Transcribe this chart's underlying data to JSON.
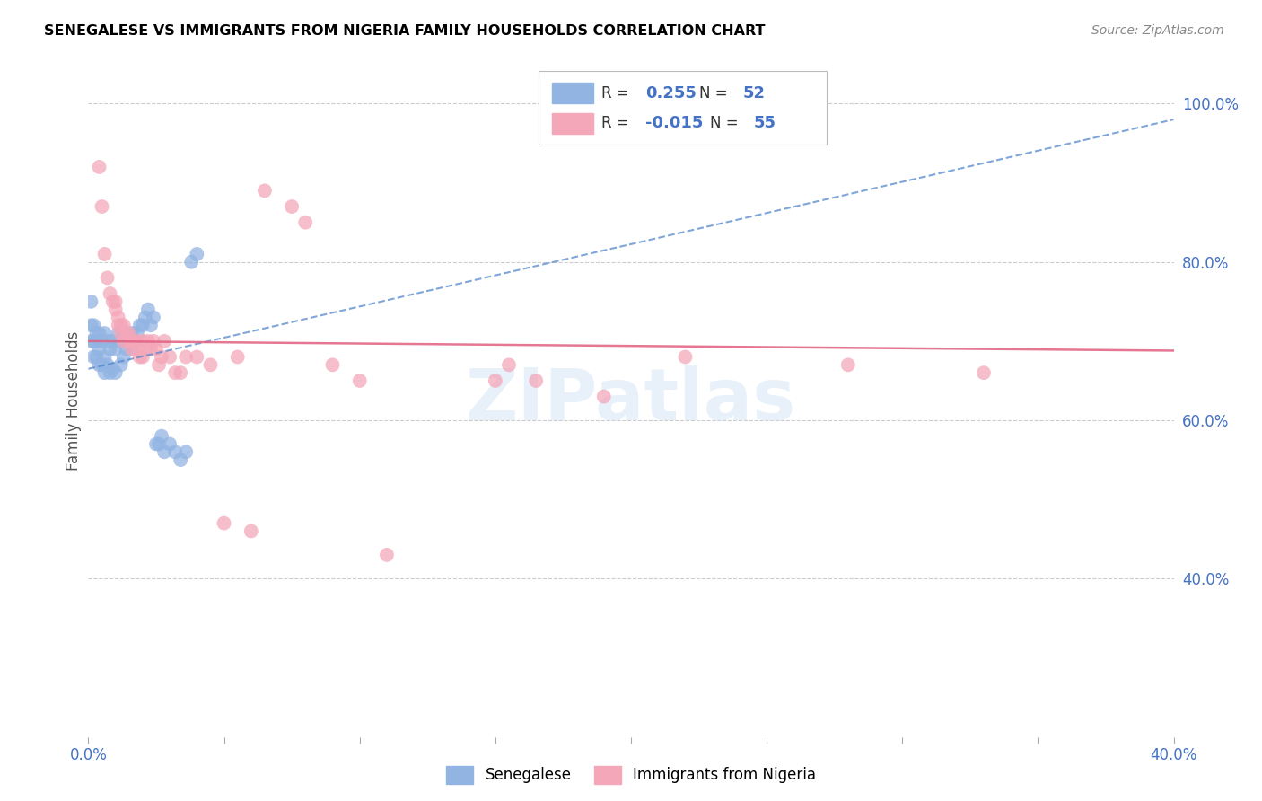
{
  "title": "SENEGALESE VS IMMIGRANTS FROM NIGERIA FAMILY HOUSEHOLDS CORRELATION CHART",
  "source": "Source: ZipAtlas.com",
  "ylabel": "Family Households",
  "xlim": [
    0.0,
    0.4
  ],
  "ylim": [
    0.2,
    1.05
  ],
  "x_ticks": [
    0.0,
    0.05,
    0.1,
    0.15,
    0.2,
    0.25,
    0.3,
    0.35,
    0.4
  ],
  "x_tick_labels": [
    "0.0%",
    "",
    "",
    "",
    "",
    "",
    "",
    "",
    "40.0%"
  ],
  "y_ticks_right": [
    0.4,
    0.6,
    0.8,
    1.0
  ],
  "y_tick_labels_right": [
    "40.0%",
    "60.0%",
    "80.0%",
    "100.0%"
  ],
  "senegalese_color": "#92b4e3",
  "nigeria_color": "#f4a7b9",
  "trendline_blue_color": "#5588cc",
  "trendline_pink_color": "#e06080",
  "R_senegalese": 0.255,
  "N_senegalese": 52,
  "R_nigeria": -0.015,
  "N_nigeria": 55,
  "watermark": "ZIPatlas",
  "legend_label_senegalese": "Senegalese",
  "legend_label_nigeria": "Immigrants from Nigeria",
  "senegalese_x": [
    0.001,
    0.001,
    0.001,
    0.002,
    0.002,
    0.002,
    0.003,
    0.003,
    0.003,
    0.004,
    0.004,
    0.004,
    0.005,
    0.005,
    0.006,
    0.006,
    0.006,
    0.007,
    0.007,
    0.008,
    0.008,
    0.009,
    0.009,
    0.01,
    0.01,
    0.011,
    0.012,
    0.012,
    0.013,
    0.013,
    0.014,
    0.015,
    0.016,
    0.016,
    0.017,
    0.018,
    0.019,
    0.02,
    0.021,
    0.022,
    0.023,
    0.024,
    0.025,
    0.026,
    0.027,
    0.028,
    0.03,
    0.032,
    0.034,
    0.036,
    0.038,
    0.04
  ],
  "senegalese_y": [
    0.7,
    0.72,
    0.75,
    0.68,
    0.7,
    0.72,
    0.68,
    0.7,
    0.71,
    0.67,
    0.69,
    0.71,
    0.67,
    0.7,
    0.66,
    0.68,
    0.71,
    0.67,
    0.7,
    0.66,
    0.69,
    0.665,
    0.7,
    0.66,
    0.69,
    0.71,
    0.67,
    0.7,
    0.68,
    0.71,
    0.69,
    0.7,
    0.69,
    0.71,
    0.7,
    0.71,
    0.72,
    0.72,
    0.73,
    0.74,
    0.72,
    0.73,
    0.57,
    0.57,
    0.58,
    0.56,
    0.57,
    0.56,
    0.55,
    0.56,
    0.8,
    0.81
  ],
  "nigeria_x": [
    0.004,
    0.005,
    0.006,
    0.007,
    0.008,
    0.009,
    0.01,
    0.01,
    0.011,
    0.011,
    0.012,
    0.012,
    0.013,
    0.013,
    0.014,
    0.015,
    0.015,
    0.016,
    0.016,
    0.017,
    0.018,
    0.018,
    0.019,
    0.02,
    0.02,
    0.021,
    0.022,
    0.023,
    0.024,
    0.025,
    0.026,
    0.027,
    0.028,
    0.03,
    0.032,
    0.034,
    0.036,
    0.04,
    0.045,
    0.05,
    0.055,
    0.06,
    0.065,
    0.075,
    0.08,
    0.09,
    0.1,
    0.11,
    0.15,
    0.155,
    0.165,
    0.19,
    0.22,
    0.28,
    0.33
  ],
  "nigeria_y": [
    0.92,
    0.87,
    0.81,
    0.78,
    0.76,
    0.75,
    0.75,
    0.74,
    0.73,
    0.72,
    0.72,
    0.71,
    0.7,
    0.72,
    0.71,
    0.7,
    0.71,
    0.69,
    0.7,
    0.7,
    0.69,
    0.7,
    0.68,
    0.68,
    0.7,
    0.69,
    0.7,
    0.69,
    0.7,
    0.69,
    0.67,
    0.68,
    0.7,
    0.68,
    0.66,
    0.66,
    0.68,
    0.68,
    0.67,
    0.47,
    0.68,
    0.46,
    0.89,
    0.87,
    0.85,
    0.67,
    0.65,
    0.43,
    0.65,
    0.67,
    0.65,
    0.63,
    0.68,
    0.67,
    0.66
  ]
}
